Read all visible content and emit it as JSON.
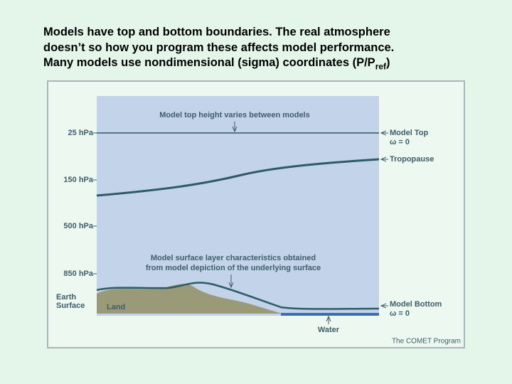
{
  "title": {
    "lines": [
      "Models have top and bottom boundaries.  The real atmosphere",
      "doesn’t so how you program these affects model performance."
    ],
    "last_line": "Many models use nondimensional (sigma) coordinates (P/P",
    "subscript": "ref",
    "suffix": ")"
  },
  "diagram": {
    "pressure_levels": [
      "25 hPa",
      "150 hPa",
      "500 hPa",
      "850 hPa"
    ],
    "earth_surface": [
      "Earth",
      "Surface"
    ],
    "land": "Land",
    "water": "Water",
    "top_note": "Model top height varies between models",
    "surface_note": [
      "Model surface layer characteristics obtained",
      "from model depiction of the underlying surface"
    ],
    "model_top": "Model Top",
    "model_top_omega": "ω = 0",
    "tropopause": "Tropopause",
    "model_bottom": "Model Bottom",
    "model_bottom_omega": "ω = 0",
    "credit": "The COMET Program"
  }
}
